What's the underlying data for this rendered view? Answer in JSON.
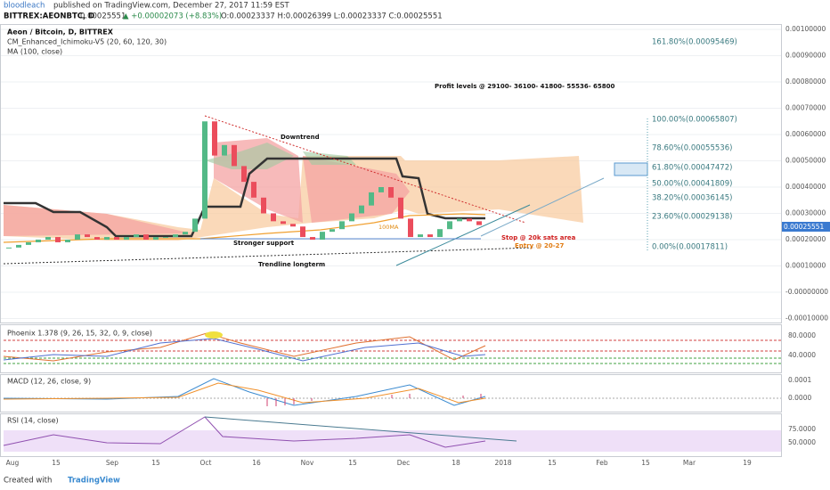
{
  "header": {
    "author": "bloodleach",
    "published": "published on TradingView.com, December 27, 2017 11:59 EST",
    "symbol": "BITTREX:AEONBTC, D",
    "last": "0.00025551",
    "change": "▲ +0.00002073 (+8.83%)",
    "ohlc": "O:0.00023337 H:0.00026399 L:0.00023337 C:0.00025551"
  },
  "main_pane": {
    "title": "Aeon / Bitcoin, D, BITTREX",
    "indicator_1": "CM_Enhanced_Ichimoku-V5 (20, 60, 120, 30)",
    "indicator_2": "MA (100, close)",
    "annotations": {
      "profit": "Profit levels @ 29100- 36100- 41800- 55536- 65800",
      "downtrend": "Downtrend",
      "support": "Stronger support",
      "ma": "100MA",
      "trendline": "Trendline longterm",
      "stop": "Stop @ 20k sats area",
      "entry": "Entry @ 20-27"
    },
    "fib_labels": [
      "161.80%(0.00095469)",
      "100.00%(0.00065807)",
      "78.60%(0.00055536)",
      "61.80%(0.00047472)",
      "50.00%(0.00041809)",
      "38.20%(0.00036145)",
      "23.60%(0.00029138)",
      "0.00%(0.00017811)"
    ],
    "price_tag": "0.00025551",
    "closes": [
      0.00017,
      0.00018,
      0.00019,
      0.0002,
      0.00021,
      0.00019,
      0.0002,
      0.00022,
      0.00021,
      0.0002,
      0.00021,
      0.0002,
      0.00021,
      0.00022,
      0.0002,
      0.00021,
      0.00021,
      0.00022,
      0.00023,
      0.00028,
      0.00065,
      0.00052,
      0.00056,
      0.00048,
      0.00042,
      0.00036,
      0.0003,
      0.00027,
      0.00026,
      0.00025,
      0.00021,
      0.0002,
      0.00023,
      0.00024,
      0.00027,
      0.0003,
      0.00033,
      0.00038,
      0.0004,
      0.00036,
      0.00028,
      0.00021,
      0.00022,
      0.00021,
      0.00024,
      0.00027,
      0.00028,
      0.00027,
      0.00025551
    ],
    "yticks": [
      {
        "value": 0.001,
        "label": "0.00100000"
      },
      {
        "value": 0.0009,
        "label": "0.00090000"
      },
      {
        "value": 0.0008,
        "label": "0.00080000"
      },
      {
        "value": 0.0007,
        "label": "0.00070000"
      },
      {
        "value": 0.0006,
        "label": "0.00060000"
      },
      {
        "value": 0.0005,
        "label": "0.00050000"
      },
      {
        "value": 0.0004,
        "label": "0.00040000"
      },
      {
        "value": 0.0003,
        "label": "0.00030000"
      },
      {
        "value": 0.0002,
        "label": "0.00020000"
      },
      {
        "value": 0.0001,
        "label": "0.00010000"
      },
      {
        "value": 0,
        "label": "-0.00000000"
      },
      {
        "value": -0.0001,
        "label": "-0.00010000"
      }
    ]
  },
  "phoenix": {
    "title": "Phoenix 1.378 (9, 26, 15, 32, 0, 9, close)",
    "ticks": [
      "80.0000",
      "40.0000"
    ]
  },
  "macd": {
    "title": "MACD (12, 26, close, 9)",
    "ticks": [
      "0.0001",
      "0.0000"
    ]
  },
  "rsi": {
    "title": "RSI (14, close)",
    "ticks": [
      "75.0000",
      "50.0000"
    ]
  },
  "xaxis": [
    "Aug",
    "15",
    "Sep",
    "15",
    "Oct",
    "16",
    "Nov",
    "15",
    "Dec",
    "18",
    "2018",
    "15",
    "Feb",
    "15",
    "Mar",
    "19"
  ],
  "footer": {
    "created": "Created with",
    "brand": "TradingView"
  }
}
